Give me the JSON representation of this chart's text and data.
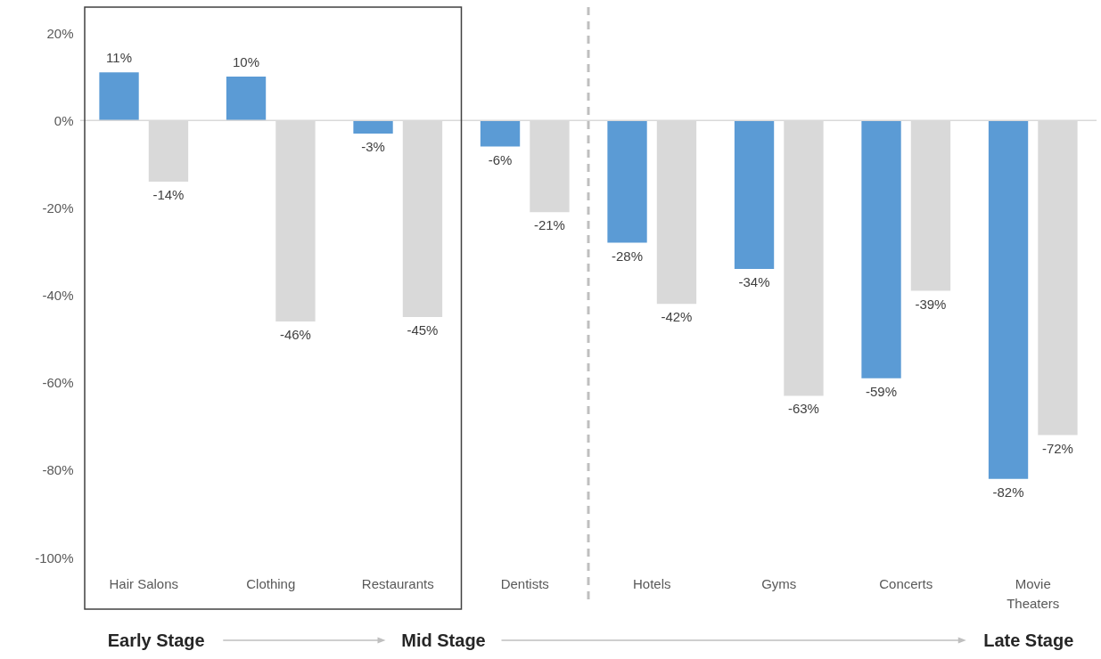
{
  "chart_data": {
    "type": "bar",
    "categories": [
      "Hair Salons",
      "Clothing",
      "Restaurants",
      "Dentists",
      "Hotels",
      "Gyms",
      "Concerts",
      "Movie Theaters"
    ],
    "series": [
      {
        "color": "#5b9bd5",
        "values": [
          11,
          10,
          -3,
          -6,
          -28,
          -34,
          -59,
          -82
        ],
        "value_labels": [
          "11%",
          "10%",
          "-3%",
          "-6%",
          "-28%",
          "-34%",
          "-59%",
          "-82%"
        ]
      },
      {
        "color": "#d9d9d9",
        "values": [
          -14,
          -46,
          -45,
          -21,
          -42,
          -63,
          -39,
          -72
        ],
        "value_labels": [
          "-14%",
          "-46%",
          "-45%",
          "-21%",
          "-42%",
          "-63%",
          "-39%",
          "-72%"
        ]
      }
    ],
    "ylim": [
      -100,
      20
    ],
    "yticks": [
      {
        "value": -100,
        "label": "-100%"
      },
      {
        "value": -80,
        "label": "-80%"
      },
      {
        "value": -60,
        "label": "-60%"
      },
      {
        "value": -40,
        "label": "-40%"
      },
      {
        "value": -20,
        "label": "-20%"
      },
      {
        "value": 0,
        "label": "0%"
      },
      {
        "value": 20,
        "label": "20%"
      }
    ],
    "ref_lines": [
      {
        "axis": "y",
        "value": 0,
        "color": "#d9d9d9"
      }
    ],
    "grid": false,
    "legend": false,
    "annotations": [
      "Early Stage",
      "Mid Stage",
      "Late Stage"
    ]
  }
}
